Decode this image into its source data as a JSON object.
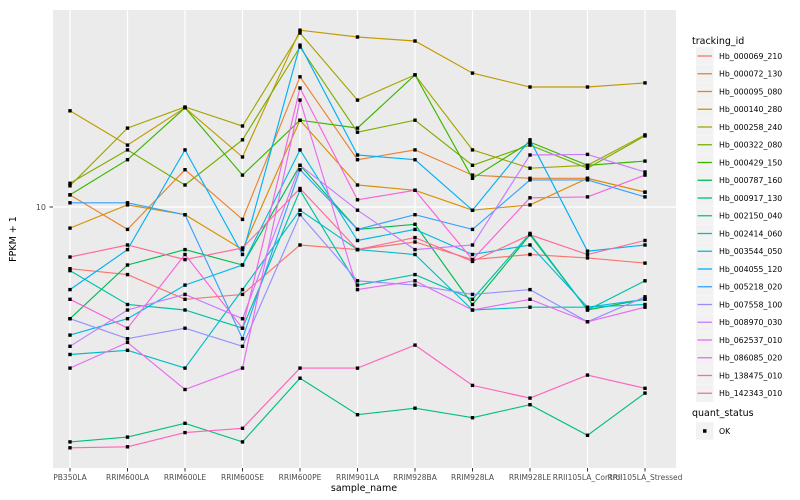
{
  "chart": {
    "ylabel": "FPKM + 1",
    "xlabel": "sample_name",
    "y_tick_label": "10",
    "legend_title": "tracking_id",
    "quant_legend_title": "quant_status",
    "quant_ok_label": "OK"
  },
  "chart_data": {
    "type": "line",
    "title": "",
    "xlabel": "sample_name",
    "ylabel": "FPKM + 1",
    "y_scale": "log10",
    "y_ticks": [
      10
    ],
    "y_tick_labels": [
      "10"
    ],
    "ylim": [
      0.86,
      64
    ],
    "grid": true,
    "legend_position": "right",
    "legend_title": "tracking_id",
    "quant_status": {
      "title": "quant_status",
      "items": [
        {
          "label": "OK",
          "shape": "black-square"
        }
      ]
    },
    "point_shape": "black-square",
    "categories": [
      "PB350LA",
      "RRIM600LA",
      "RRIM600LE",
      "RRIM600SE",
      "RRIM600PE",
      "RRIM901LA",
      "RRIM928BA",
      "RRIM928LA",
      "RRIM928LE",
      "RRII105LA_Control",
      "RRII105LA_Stressed"
    ],
    "series": [
      {
        "name": "Hb_000069_210",
        "color": "#F8766D",
        "values": [
          5.6,
          5.3,
          4.2,
          4.4,
          7.0,
          6.7,
          7.2,
          6.1,
          6.4,
          6.2,
          5.9
        ]
      },
      {
        "name": "Hb_000072_130",
        "color": "#EA8331",
        "values": [
          11.2,
          8.1,
          14.2,
          8.9,
          34.0,
          15.6,
          17.1,
          13.5,
          13.1,
          13.1,
          11.5
        ]
      },
      {
        "name": "Hb_000095_080",
        "color": "#D89000",
        "values": [
          8.2,
          10.2,
          9.3,
          6.7,
          22.6,
          12.3,
          11.7,
          9.7,
          10.2,
          13.1,
          11.5
        ]
      },
      {
        "name": "Hb_000140_280",
        "color": "#C09B00",
        "values": [
          24.7,
          17.9,
          25.4,
          16.0,
          52.7,
          49.4,
          47.6,
          35.2,
          30.9,
          30.9,
          32.1
        ]
      },
      {
        "name": "Hb_000258_240",
        "color": "#A3A500",
        "values": [
          12.2,
          21.0,
          25.6,
          21.4,
          51.3,
          27.3,
          34.6,
          17.1,
          14.4,
          14.8,
          19.7
        ]
      },
      {
        "name": "Hb_000322_080",
        "color": "#7CAE00",
        "values": [
          12.5,
          17.1,
          12.3,
          18.8,
          45.0,
          20.2,
          22.6,
          14.8,
          17.9,
          14.4,
          19.5
        ]
      },
      {
        "name": "Hb_000429_150",
        "color": "#39B600",
        "values": [
          11.2,
          15.6,
          25.4,
          13.5,
          22.6,
          21.0,
          34.6,
          13.1,
          18.4,
          14.8,
          15.4
        ]
      },
      {
        "name": "Hb_000787_160",
        "color": "#00BB4E",
        "values": [
          3.5,
          5.8,
          6.7,
          5.8,
          14.8,
          8.1,
          8.5,
          4.0,
          7.7,
          3.8,
          4.2
        ]
      },
      {
        "name": "Hb_000917_130",
        "color": "#00BF7D",
        "values": [
          1.1,
          1.15,
          1.31,
          1.1,
          2.0,
          1.42,
          1.51,
          1.38,
          1.56,
          1.17,
          1.74
        ]
      },
      {
        "name": "Hb_002150_040",
        "color": "#00C1A3",
        "values": [
          5.5,
          4.0,
          3.8,
          3.2,
          11.7,
          4.8,
          5.3,
          4.2,
          7.8,
          3.8,
          5.0
        ]
      },
      {
        "name": "Hb_002414_060",
        "color": "#00BFC4",
        "values": [
          2.5,
          2.6,
          2.2,
          4.6,
          9.7,
          6.7,
          6.4,
          3.8,
          3.9,
          3.9,
          4.0
        ]
      },
      {
        "name": "Hb_003544_050",
        "color": "#00BAE0",
        "values": [
          3.0,
          3.5,
          4.8,
          5.8,
          17.1,
          7.3,
          8.1,
          6.4,
          7.0,
          3.9,
          4.2
        ]
      },
      {
        "name": "Hb_004055_120",
        "color": "#00B0F6",
        "values": [
          4.6,
          6.7,
          17.1,
          6.4,
          45.8,
          16.3,
          15.6,
          9.7,
          18.8,
          6.6,
          7.0
        ]
      },
      {
        "name": "Hb_005218_020",
        "color": "#35A2FF",
        "values": [
          10.4,
          10.4,
          9.3,
          2.9,
          14.2,
          8.1,
          9.3,
          8.1,
          12.9,
          12.9,
          11.0
        ]
      },
      {
        "name": "Hb_007558_100",
        "color": "#9590FF",
        "values": [
          3.5,
          2.9,
          3.2,
          2.7,
          9.3,
          5.0,
          4.8,
          4.4,
          4.6,
          3.4,
          4.3
        ]
      },
      {
        "name": "Hb_008970_030",
        "color": "#C77CFF",
        "values": [
          2.7,
          3.8,
          4.4,
          3.5,
          14.8,
          9.7,
          6.7,
          7.0,
          16.3,
          16.4,
          13.9
        ]
      },
      {
        "name": "Hb_062537_010",
        "color": "#E76BF3",
        "values": [
          2.2,
          2.8,
          1.8,
          2.2,
          27.3,
          4.6,
          5.0,
          3.8,
          4.2,
          3.4,
          3.9
        ]
      },
      {
        "name": "Hb_086085_020",
        "color": "#FA62DB",
        "values": [
          4.2,
          3.2,
          6.4,
          3.2,
          30.6,
          10.7,
          11.7,
          6.1,
          10.9,
          11.0,
          13.5
        ]
      },
      {
        "name": "Hb_138475_010",
        "color": "#FF62BC",
        "values": [
          1.04,
          1.05,
          1.2,
          1.25,
          2.2,
          2.2,
          2.73,
          1.87,
          1.66,
          2.06,
          1.82
        ]
      },
      {
        "name": "Hb_142343_010",
        "color": "#FF6A98",
        "values": [
          6.25,
          7.0,
          6.1,
          6.8,
          11.9,
          6.7,
          7.5,
          6.0,
          7.7,
          6.4,
          7.3
        ]
      }
    ],
    "colors": {
      "panel_bg": "#EBEBEB",
      "grid": "#FFFFFF",
      "point": "#000000",
      "axis_text": "#4D4D4D",
      "title_text": "#000000",
      "tick_mark": "#333333",
      "legend_key_bg": "#F2F2F2"
    }
  }
}
